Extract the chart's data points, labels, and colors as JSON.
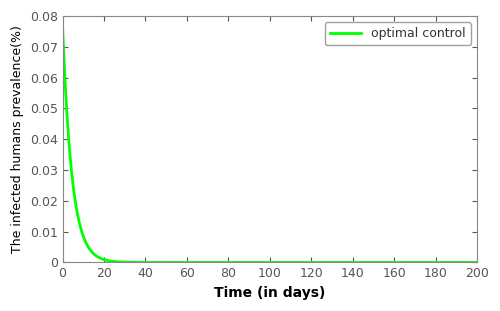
{
  "title": "",
  "xlabel": "Time (in days)",
  "ylabel": "The infected humans prevalence(%)",
  "xlim": [
    0,
    200
  ],
  "ylim": [
    0,
    0.08
  ],
  "x_ticks": [
    0,
    20,
    40,
    60,
    80,
    100,
    120,
    140,
    160,
    180,
    200
  ],
  "y_ticks": [
    0,
    0.01,
    0.02,
    0.03,
    0.04,
    0.05,
    0.06,
    0.07,
    0.08
  ],
  "line_color": "#00ff00",
  "line_width": 2.0,
  "legend_label": "optimal control",
  "decay_rate": 0.22,
  "initial_value": 0.077,
  "background_color": "#ffffff",
  "axes_bg_color": "#ffffff",
  "tick_label_color": "#555555",
  "spine_color": "#888888",
  "grid": false,
  "figsize": [
    5.0,
    3.11
  ],
  "dpi": 100
}
